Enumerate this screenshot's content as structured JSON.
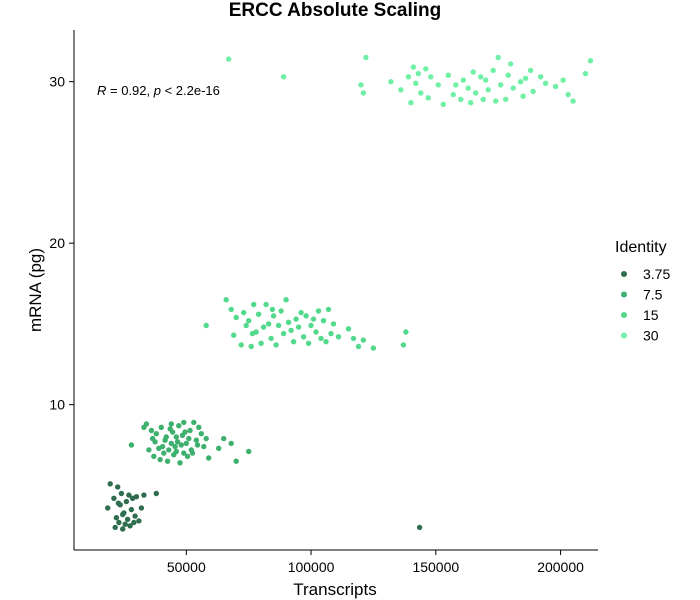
{
  "chart_data": {
    "type": "scatter",
    "title": "ERCC Absolute Scaling",
    "xlabel": "Transcripts",
    "ylabel": "mRNA (pg)",
    "xlim": [
      5000,
      215000
    ],
    "ylim": [
      1,
      33.2
    ],
    "xticks": [
      50000,
      100000,
      150000,
      200000
    ],
    "xtick_labels": [
      "50000",
      "100000",
      "150000",
      "200000"
    ],
    "yticks": [
      10,
      20,
      30
    ],
    "ytick_labels": [
      "10",
      "20",
      "30"
    ],
    "grid": false,
    "legend": {
      "title": "Identity",
      "position": "right"
    },
    "annotation": {
      "r_label": "R",
      "r_value": " = 0.92, ",
      "p_label": "p",
      "p_value": " < 2.2e-16"
    },
    "series": [
      {
        "name": "3.75",
        "color": "#2e6e4e",
        "points": [
          [
            18500,
            3.6
          ],
          [
            19500,
            5.1
          ],
          [
            21000,
            4.2
          ],
          [
            21500,
            2.4
          ],
          [
            22000,
            3.0
          ],
          [
            22500,
            4.9
          ],
          [
            23000,
            2.7
          ],
          [
            23500,
            3.8
          ],
          [
            24000,
            4.5
          ],
          [
            24500,
            2.3
          ],
          [
            25000,
            3.3
          ],
          [
            25500,
            2.6
          ],
          [
            26000,
            4.0
          ],
          [
            26500,
            2.9
          ],
          [
            27000,
            4.4
          ],
          [
            27500,
            2.5
          ],
          [
            28000,
            3.5
          ],
          [
            28500,
            4.2
          ],
          [
            29000,
            2.7
          ],
          [
            29500,
            3.1
          ],
          [
            30000,
            4.3
          ],
          [
            31000,
            2.8
          ],
          [
            32000,
            3.6
          ],
          [
            33000,
            4.4
          ],
          [
            38000,
            4.5
          ],
          [
            24500,
            3.2
          ],
          [
            22800,
            3.9
          ],
          [
            143500,
            2.4
          ]
        ]
      },
      {
        "name": "7.5",
        "color": "#3db06e",
        "points": [
          [
            28000,
            7.5
          ],
          [
            33000,
            8.6
          ],
          [
            34000,
            8.8
          ],
          [
            35000,
            7.2
          ],
          [
            36000,
            8.4
          ],
          [
            37000,
            6.8
          ],
          [
            37500,
            7.7
          ],
          [
            38000,
            8.2
          ],
          [
            39000,
            7.3
          ],
          [
            39500,
            6.6
          ],
          [
            40000,
            8.6
          ],
          [
            41000,
            7.0
          ],
          [
            41500,
            7.8
          ],
          [
            42000,
            8.0
          ],
          [
            42500,
            6.5
          ],
          [
            43000,
            7.2
          ],
          [
            43500,
            8.5
          ],
          [
            44000,
            7.6
          ],
          [
            44500,
            8.3
          ],
          [
            45000,
            6.9
          ],
          [
            45500,
            7.4
          ],
          [
            46000,
            8.0
          ],
          [
            46500,
            7.7
          ],
          [
            47000,
            8.7
          ],
          [
            47500,
            6.4
          ],
          [
            48000,
            7.5
          ],
          [
            48500,
            8.1
          ],
          [
            49000,
            7.0
          ],
          [
            49500,
            8.3
          ],
          [
            50000,
            7.6
          ],
          [
            50500,
            6.8
          ],
          [
            51000,
            7.9
          ],
          [
            51500,
            8.4
          ],
          [
            52000,
            7.2
          ],
          [
            52500,
            7.0
          ],
          [
            53000,
            8.9
          ],
          [
            54000,
            7.8
          ],
          [
            55000,
            8.6
          ],
          [
            56000,
            8.2
          ],
          [
            57000,
            7.4
          ],
          [
            58000,
            7.9
          ],
          [
            59000,
            6.7
          ],
          [
            63000,
            7.3
          ],
          [
            65000,
            7.9
          ],
          [
            68000,
            7.6
          ],
          [
            70000,
            6.5
          ],
          [
            75000,
            7.1
          ],
          [
            44000,
            8.8
          ],
          [
            40500,
            7.4
          ],
          [
            46000,
            7.1
          ],
          [
            36500,
            7.9
          ],
          [
            49000,
            8.9
          ],
          [
            54500,
            7.5
          ]
        ]
      },
      {
        "name": "15",
        "color": "#52d98c",
        "points": [
          [
            58000,
            14.9
          ],
          [
            66000,
            16.5
          ],
          [
            68000,
            15.9
          ],
          [
            69000,
            14.3
          ],
          [
            70000,
            15.4
          ],
          [
            72000,
            13.7
          ],
          [
            73000,
            15.7
          ],
          [
            74000,
            14.9
          ],
          [
            75000,
            15.2
          ],
          [
            76000,
            13.6
          ],
          [
            77000,
            16.2
          ],
          [
            78000,
            14.5
          ],
          [
            79000,
            15.6
          ],
          [
            80000,
            13.8
          ],
          [
            81000,
            14.8
          ],
          [
            82000,
            16.2
          ],
          [
            83000,
            15.0
          ],
          [
            84000,
            14.1
          ],
          [
            85000,
            15.5
          ],
          [
            86000,
            13.7
          ],
          [
            87000,
            14.9
          ],
          [
            88000,
            15.8
          ],
          [
            89000,
            14.4
          ],
          [
            90000,
            16.5
          ],
          [
            91000,
            15.1
          ],
          [
            92000,
            14.6
          ],
          [
            93000,
            13.9
          ],
          [
            94000,
            15.3
          ],
          [
            95000,
            14.8
          ],
          [
            96000,
            15.7
          ],
          [
            97000,
            14.2
          ],
          [
            98000,
            15.5
          ],
          [
            99000,
            13.8
          ],
          [
            100000,
            14.9
          ],
          [
            101000,
            15.3
          ],
          [
            102000,
            14.5
          ],
          [
            103000,
            15.8
          ],
          [
            104000,
            14.1
          ],
          [
            105000,
            15.2
          ],
          [
            106000,
            13.9
          ],
          [
            107000,
            15.9
          ],
          [
            108000,
            14.4
          ],
          [
            109000,
            15.0
          ],
          [
            111000,
            14.2
          ],
          [
            115000,
            14.7
          ],
          [
            117000,
            14.1
          ],
          [
            119000,
            13.6
          ],
          [
            121000,
            14.0
          ],
          [
            125000,
            13.5
          ],
          [
            137000,
            13.7
          ],
          [
            138000,
            14.5
          ],
          [
            84500,
            15.9
          ],
          [
            76500,
            14.4
          ]
        ]
      },
      {
        "name": "30",
        "color": "#6ff0a4",
        "points": [
          [
            67000,
            31.4
          ],
          [
            89000,
            30.3
          ],
          [
            120000,
            29.8
          ],
          [
            121000,
            29.3
          ],
          [
            122000,
            31.5
          ],
          [
            132000,
            30.0
          ],
          [
            136000,
            29.5
          ],
          [
            139000,
            30.3
          ],
          [
            140000,
            28.7
          ],
          [
            141000,
            30.9
          ],
          [
            142000,
            29.9
          ],
          [
            143000,
            30.5
          ],
          [
            144000,
            29.3
          ],
          [
            146000,
            30.8
          ],
          [
            147000,
            29.0
          ],
          [
            148000,
            30.3
          ],
          [
            151000,
            29.8
          ],
          [
            153000,
            28.6
          ],
          [
            155000,
            30.4
          ],
          [
            157000,
            29.2
          ],
          [
            158000,
            29.8
          ],
          [
            160000,
            28.9
          ],
          [
            161000,
            30.1
          ],
          [
            163000,
            29.6
          ],
          [
            164000,
            28.7
          ],
          [
            165000,
            30.6
          ],
          [
            166000,
            29.3
          ],
          [
            168000,
            30.3
          ],
          [
            169000,
            28.9
          ],
          [
            170000,
            30.1
          ],
          [
            171000,
            29.5
          ],
          [
            173000,
            30.7
          ],
          [
            174000,
            28.8
          ],
          [
            175000,
            31.5
          ],
          [
            176000,
            29.8
          ],
          [
            178000,
            28.9
          ],
          [
            179000,
            30.4
          ],
          [
            180000,
            31.1
          ],
          [
            181000,
            29.6
          ],
          [
            184000,
            30.0
          ],
          [
            186000,
            30.2
          ],
          [
            188000,
            30.7
          ],
          [
            189000,
            29.4
          ],
          [
            192000,
            30.3
          ],
          [
            194000,
            29.9
          ],
          [
            198000,
            29.7
          ],
          [
            201000,
            30.1
          ],
          [
            203000,
            29.2
          ],
          [
            205000,
            28.8
          ],
          [
            210000,
            30.5
          ],
          [
            212000,
            31.3
          ],
          [
            185000,
            29.1
          ]
        ]
      }
    ]
  }
}
